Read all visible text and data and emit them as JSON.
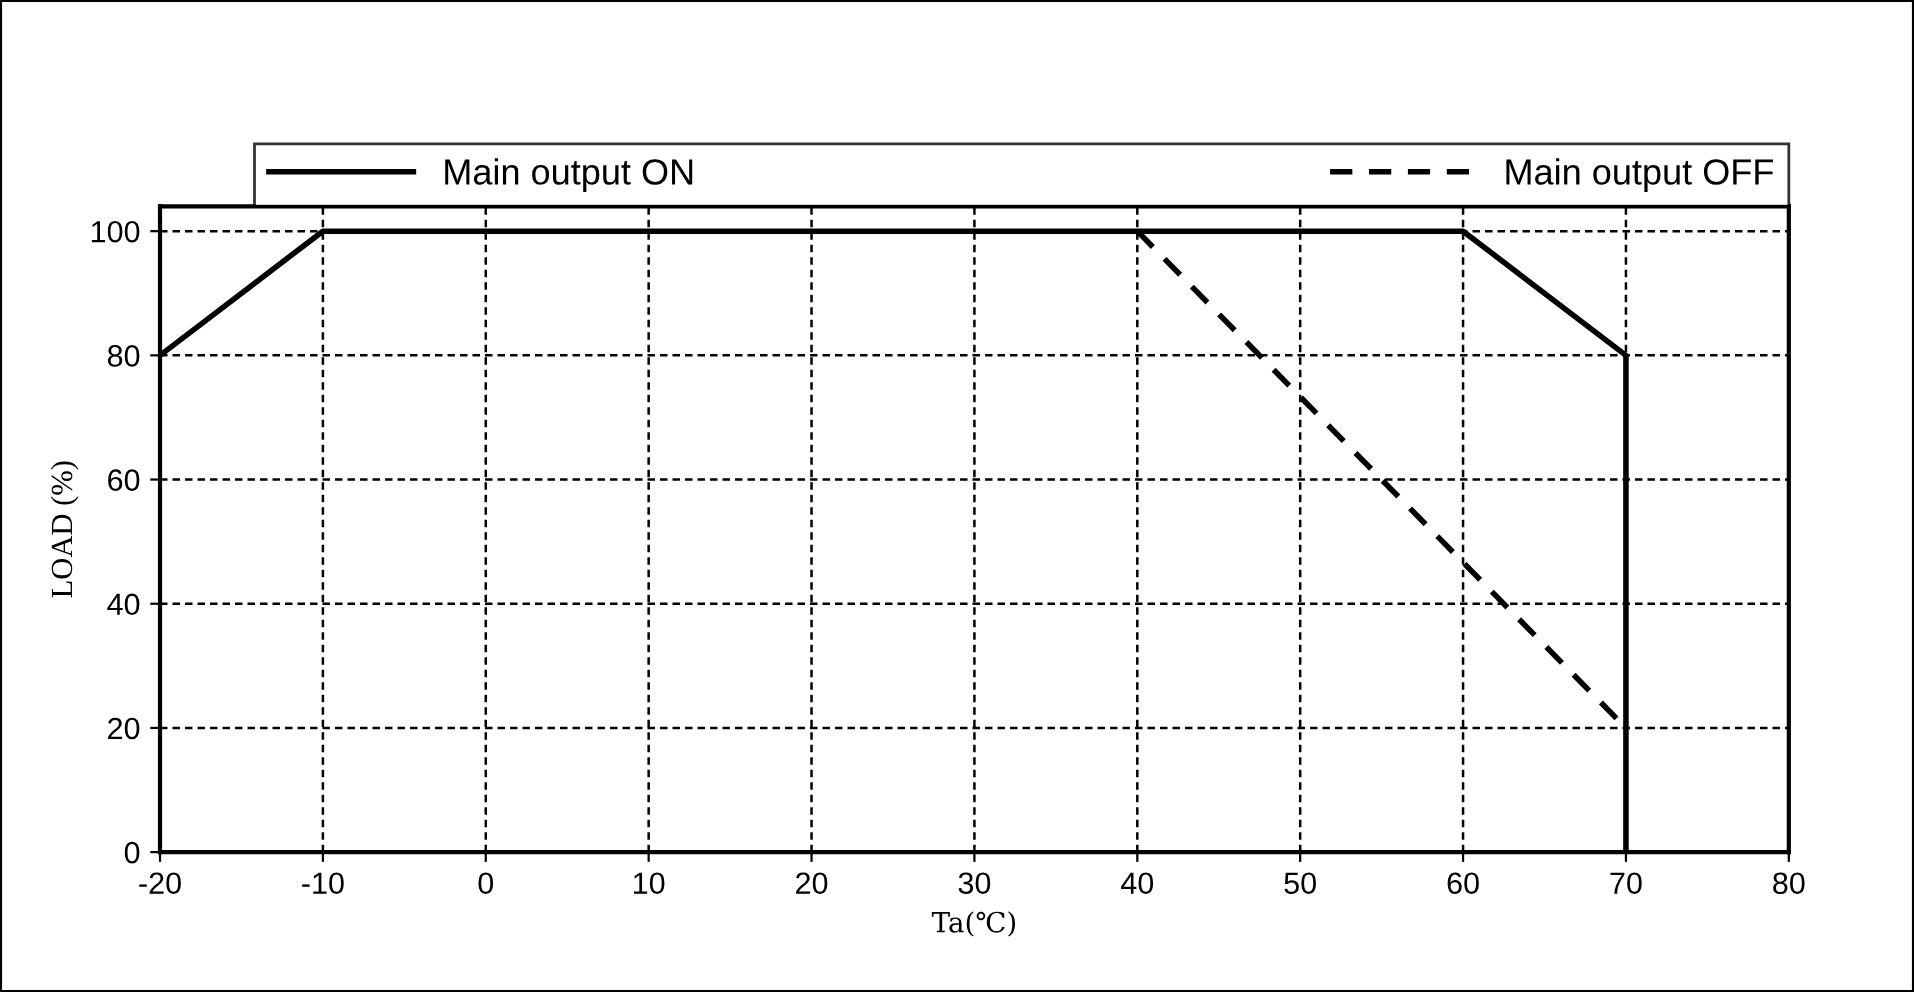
{
  "chart_data": {
    "type": "line",
    "xlabel": "Ta(℃)",
    "ylabel": "LOAD (%)",
    "series": [
      {
        "name": "Main output ON",
        "color": "#000000",
        "line_style": "solid",
        "x": [
          -20,
          -10,
          60,
          70,
          70
        ],
        "values": [
          80,
          100,
          100,
          80,
          0
        ]
      },
      {
        "name": "Main output OFF",
        "color": "#000000",
        "line_style": "dashed",
        "x": [
          40,
          70
        ],
        "values": [
          100,
          20
        ]
      }
    ],
    "xlim": [
      -20,
      80
    ],
    "xticks": [
      -20,
      -10,
      0,
      10,
      20,
      30,
      40,
      50,
      60,
      70,
      80
    ],
    "ylim": [
      0,
      104
    ],
    "yticks": [
      0,
      20,
      40,
      60,
      80,
      100
    ],
    "grid": true,
    "legend": "top",
    "marker": "none"
  }
}
